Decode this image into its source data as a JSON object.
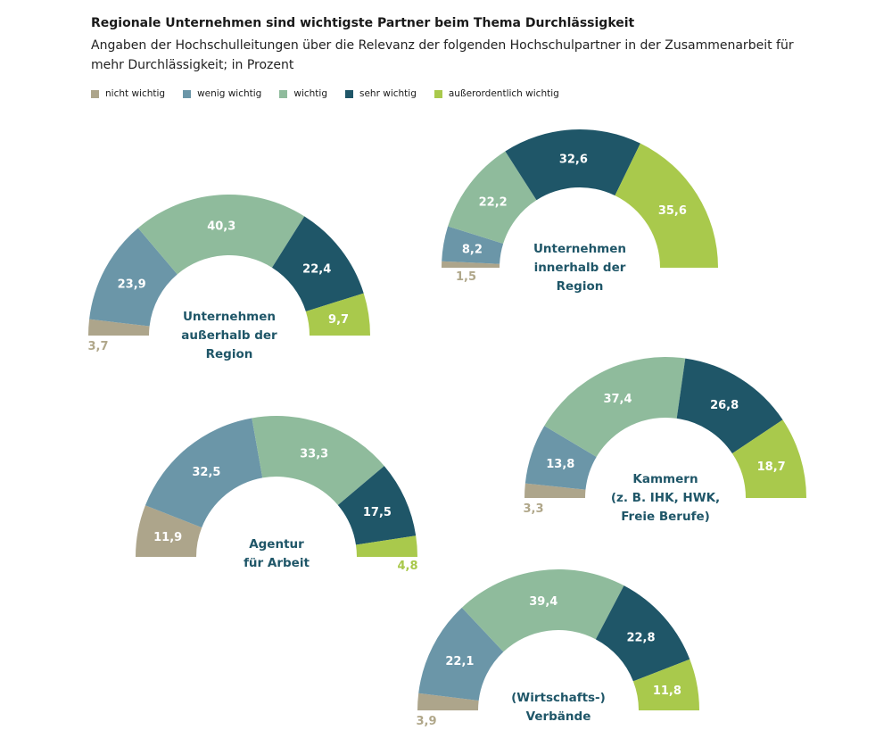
{
  "header": {
    "title": "Regionale Unternehmen sind wichtigste Partner beim Thema Durchlässigkeit",
    "subtitle": "Angaben der Hochschulleitungen über die Relevanz der folgenden Hochschulpartner in der Zusammenarbeit für mehr Durchlässigkeit; in Prozent"
  },
  "legend": [
    {
      "label": "nicht wichtig",
      "color": "#ada58b"
    },
    {
      "label": "wenig wichtig",
      "color": "#6b96a8"
    },
    {
      "label": "wichtig",
      "color": "#8fbb9c"
    },
    {
      "label": "sehr wichtig",
      "color": "#1f5668"
    },
    {
      "label": "außerordentlich wichtig",
      "color": "#a9c94c"
    }
  ],
  "chart_data": [
    {
      "type": "semi-donut",
      "title": "Unternehmen innerhalb der Region",
      "title_lines": [
        "Unternehmen",
        "innerhalb der",
        "Region"
      ],
      "categories": [
        "nicht wichtig",
        "wenig wichtig",
        "wichtig",
        "sehr wichtig",
        "außerordentlich wichtig"
      ],
      "values": [
        1.5,
        8.2,
        22.2,
        32.6,
        35.6
      ],
      "labels": [
        "1,5",
        "8,2",
        "22,2",
        "32,6",
        "35,6"
      ]
    },
    {
      "type": "semi-donut",
      "title": "Unternehmen außerhalb der Region",
      "title_lines": [
        "Unternehmen",
        "außerhalb der",
        "Region"
      ],
      "categories": [
        "nicht wichtig",
        "wenig wichtig",
        "wichtig",
        "sehr wichtig",
        "außerordentlich wichtig"
      ],
      "values": [
        3.7,
        23.9,
        40.3,
        22.4,
        9.7
      ],
      "labels": [
        "3,7",
        "23,9",
        "40,3",
        "22,4",
        "9,7"
      ]
    },
    {
      "type": "semi-donut",
      "title": "Kammern (z. B. IHK, HWK, Freie Berufe)",
      "title_lines": [
        "Kammern",
        "(z. B. IHK, HWK,",
        "Freie Berufe)"
      ],
      "categories": [
        "nicht wichtig",
        "wenig wichtig",
        "wichtig",
        "sehr wichtig",
        "außerordentlich wichtig"
      ],
      "values": [
        3.3,
        13.8,
        37.4,
        26.8,
        18.7
      ],
      "labels": [
        "3,3",
        "13,8",
        "37,4",
        "26,8",
        "18,7"
      ]
    },
    {
      "type": "semi-donut",
      "title": "Agentur für Arbeit",
      "title_lines": [
        "Agentur",
        "für Arbeit"
      ],
      "categories": [
        "nicht wichtig",
        "wenig wichtig",
        "wichtig",
        "sehr wichtig",
        "außerordentlich wichtig"
      ],
      "values": [
        11.9,
        32.5,
        33.3,
        17.5,
        4.8
      ],
      "labels": [
        "11,9",
        "32,5",
        "33,3",
        "17,5",
        "4,8"
      ]
    },
    {
      "type": "semi-donut",
      "title": "(Wirtschafts-) Verbände",
      "title_lines": [
        "(Wirtschafts-)",
        "Verbände"
      ],
      "categories": [
        "nicht wichtig",
        "wenig wichtig",
        "wichtig",
        "sehr wichtig",
        "außerordentlich wichtig"
      ],
      "values": [
        3.9,
        22.1,
        39.4,
        22.8,
        11.8
      ],
      "labels": [
        "3,9",
        "22,1",
        "39,4",
        "22,8",
        "11,8"
      ]
    }
  ]
}
